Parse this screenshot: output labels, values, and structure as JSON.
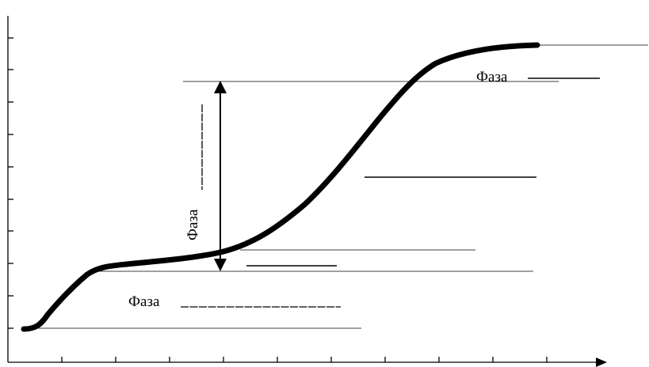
{
  "diagram": {
    "labels": {
      "phase_top": "Фаза",
      "phase_bottom": "Фаза",
      "phase_vertical": "Фаза"
    }
  }
}
